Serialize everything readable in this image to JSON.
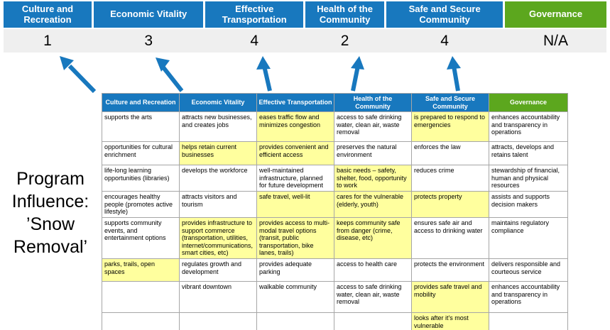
{
  "title": "Program Influence: ’Snow Removal’",
  "colors": {
    "blue": "#1878BE",
    "green": "#5CA71E",
    "yellow": "#FFFF9E",
    "score_bg": "#EFEFEF"
  },
  "pillars": [
    {
      "label": "Culture and Recreation",
      "score": "1",
      "accent": "blue"
    },
    {
      "label": "Economic Vitality",
      "score": "3",
      "accent": "blue"
    },
    {
      "label": "Effective Transportation",
      "score": "4",
      "accent": "blue"
    },
    {
      "label": "Health of the Community",
      "score": "2",
      "accent": "blue"
    },
    {
      "label": "Safe and Secure Community",
      "score": "4",
      "accent": "blue"
    },
    {
      "label": "Governance",
      "score": "N/A",
      "accent": "green"
    }
  ],
  "matrix": {
    "headers": [
      {
        "label": "Culture and Recreation",
        "accent": "blue"
      },
      {
        "label": "Economic Vitality",
        "accent": "blue"
      },
      {
        "label": "Effective Transportation",
        "accent": "blue"
      },
      {
        "label": "Health of the Community",
        "accent": "blue"
      },
      {
        "label": "Safe and Secure Community",
        "accent": "blue"
      },
      {
        "label": "Governance",
        "accent": "green"
      }
    ],
    "rows": [
      [
        {
          "text": "supports the arts",
          "hl": false
        },
        {
          "text": "attracts new businesses, and creates jobs",
          "hl": false
        },
        {
          "text": "eases traffic flow and minimizes congestion",
          "hl": true
        },
        {
          "text": "access to safe drinking water, clean air, waste removal",
          "hl": false
        },
        {
          "text": "is prepared to respond to emergencies",
          "hl": true
        },
        {
          "text": "enhances accountability and transparency in operations",
          "hl": false
        }
      ],
      [
        {
          "text": "opportunities for cultural enrichment",
          "hl": false
        },
        {
          "text": "helps retain current businesses",
          "hl": true
        },
        {
          "text": "provides convenient and efficient access",
          "hl": true
        },
        {
          "text": "preserves the natural environment",
          "hl": false
        },
        {
          "text": "enforces the law",
          "hl": false
        },
        {
          "text": "attracts, develops and retains talent",
          "hl": false
        }
      ],
      [
        {
          "text": "life-long learning opportunities (libraries)",
          "hl": false
        },
        {
          "text": "develops the workforce",
          "hl": false
        },
        {
          "text": "well-maintained infrastructure, planned for future development",
          "hl": false
        },
        {
          "text": "basic needs – safety, shelter, food, opportunity to work",
          "hl": true
        },
        {
          "text": "reduces crime",
          "hl": false
        },
        {
          "text": "stewardship of financial, human and physical resources",
          "hl": false
        }
      ],
      [
        {
          "text": "encourages healthy people (promotes active lifestyle)",
          "hl": false
        },
        {
          "text": "attracts visitors and tourism",
          "hl": false
        },
        {
          "text": "safe travel, well-lit",
          "hl": true
        },
        {
          "text": "cares for the vulnerable (elderly, youth)",
          "hl": true
        },
        {
          "text": "protects property",
          "hl": true
        },
        {
          "text": "assists and supports decision makers",
          "hl": false
        }
      ],
      [
        {
          "text": "supports community events, and entertainment options",
          "hl": false
        },
        {
          "text": "provides infrastructure to support commerce (transportation, utilities, internet/communications, smart cities, etc)",
          "hl": true
        },
        {
          "text": "provides access to multi-modal travel options (transit, public transportation, bike lanes, trails)",
          "hl": true
        },
        {
          "text": "keeps community safe from danger (crime, disease, etc)",
          "hl": true
        },
        {
          "text": "ensures safe air and access to drinking water",
          "hl": false
        },
        {
          "text": "maintains regulatory compliance",
          "hl": false
        }
      ],
      [
        {
          "text": "parks, trails, open spaces",
          "hl": true
        },
        {
          "text": "regulates growth and development",
          "hl": false
        },
        {
          "text": "provides adequate parking",
          "hl": false
        },
        {
          "text": "access to health care",
          "hl": false
        },
        {
          "text": "protects the environment",
          "hl": false
        },
        {
          "text": "delivers responsible and courteous service",
          "hl": false
        }
      ],
      [
        {
          "text": "",
          "hl": false
        },
        {
          "text": "vibrant downtown",
          "hl": false
        },
        {
          "text": "walkable community",
          "hl": false
        },
        {
          "text": "access to safe drinking water, clean air, waste removal",
          "hl": false
        },
        {
          "text": "provides safe travel and mobility",
          "hl": true
        },
        {
          "text": "enhances accountability and transparency in operations",
          "hl": false
        }
      ],
      [
        {
          "text": "",
          "hl": false
        },
        {
          "text": "",
          "hl": false
        },
        {
          "text": "",
          "hl": false
        },
        {
          "text": "",
          "hl": false
        },
        {
          "text": "looks after it's most vulnerable",
          "hl": true
        },
        {
          "text": "",
          "hl": false
        }
      ]
    ]
  }
}
